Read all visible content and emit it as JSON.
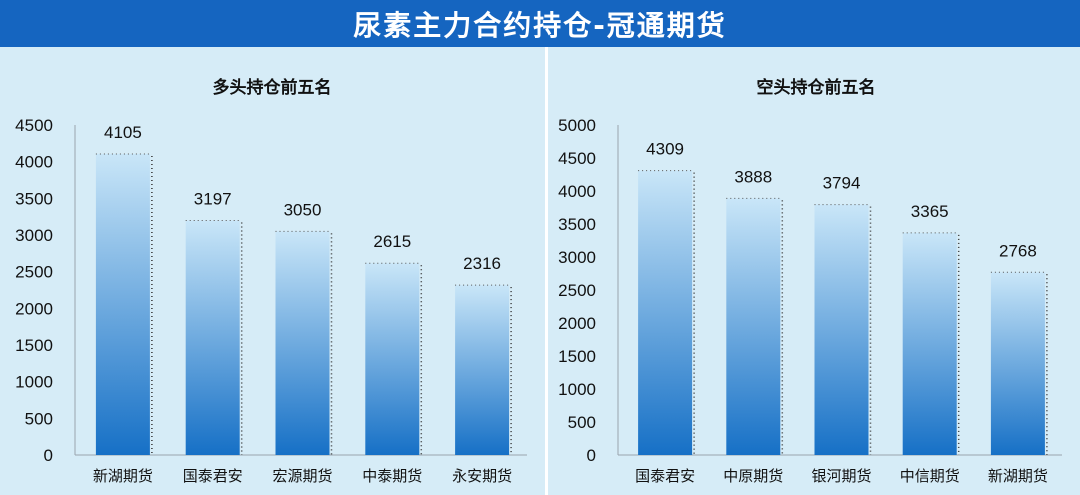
{
  "header": {
    "title": "尿素主力合约持仓-冠通期货"
  },
  "colors": {
    "header_bg": "#1565c0",
    "panel_bg": "#d6ecf7",
    "bar_top": "#c9e6f8",
    "bar_bottom": "#1670c6"
  },
  "chart_data": [
    {
      "type": "bar",
      "title": "多头持仓前五名",
      "categories": [
        "新湖期货",
        "国泰君安",
        "宏源期货",
        "中泰期货",
        "永安期货"
      ],
      "values": [
        4105,
        3197,
        3050,
        2615,
        2316
      ],
      "ylim": [
        0,
        4500
      ],
      "yticks": [
        0,
        500,
        1000,
        1500,
        2000,
        2500,
        3000,
        3500,
        4000,
        4500
      ],
      "grid": false,
      "data_labels": true
    },
    {
      "type": "bar",
      "title": "空头持仓前五名",
      "categories": [
        "国泰君安",
        "中原期货",
        "银河期货",
        "中信期货",
        "新湖期货"
      ],
      "values": [
        4309,
        3888,
        3794,
        3365,
        2768
      ],
      "ylim": [
        0,
        5000
      ],
      "yticks": [
        0,
        500,
        1000,
        1500,
        2000,
        2500,
        3000,
        3500,
        4000,
        4500,
        5000
      ],
      "grid": false,
      "data_labels": true
    }
  ]
}
